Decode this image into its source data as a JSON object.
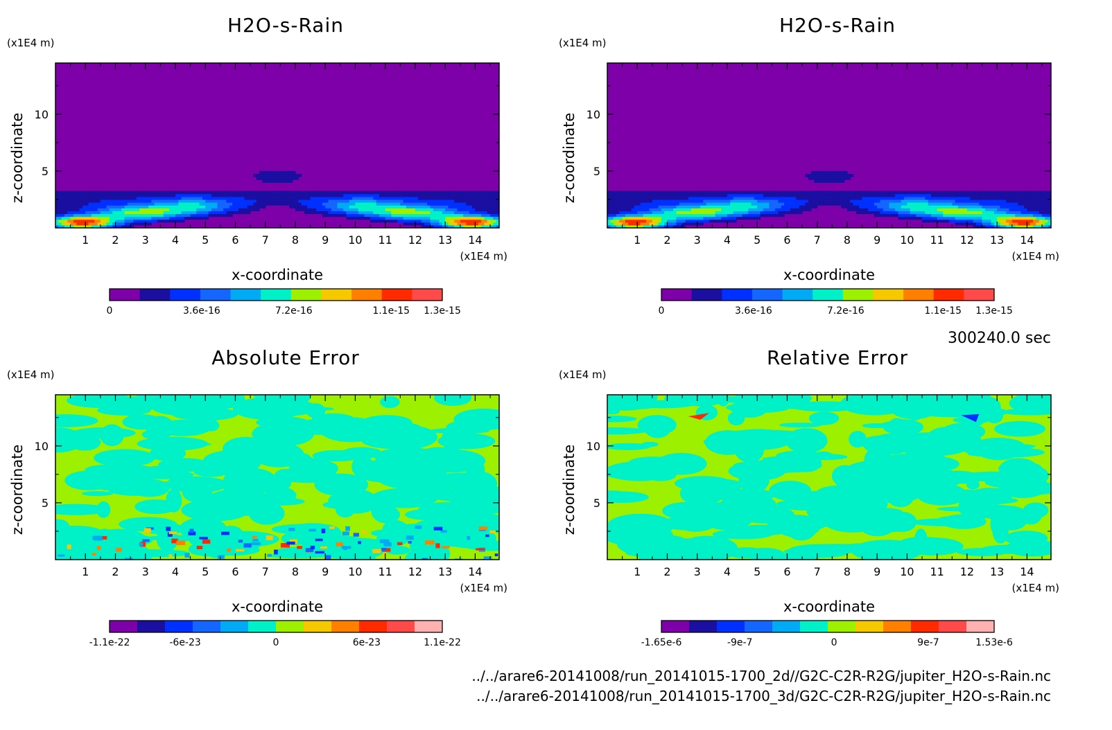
{
  "chart_data": [
    {
      "type": "heatmap",
      "title": "H2O-s-Rain",
      "xlabel": "x-coordinate",
      "ylabel": "z-coordinate",
      "x_unit": "(x1E4 m)",
      "y_unit": "(x1E4 m)",
      "xlim": [
        0,
        14.8
      ],
      "ylim": [
        0,
        14.5
      ],
      "x_ticks": [
        "1",
        "2",
        "3",
        "4",
        "5",
        "6",
        "7",
        "8",
        "9",
        "10",
        "11",
        "12",
        "13",
        "14"
      ],
      "y_ticks": [
        "5",
        "10"
      ],
      "colorbar_ticks": [
        "0",
        "3.6e-16",
        "7.2e-16",
        "1.1e-15",
        "1.3e-15"
      ],
      "colorbar_range": [
        0,
        1.3e-15
      ],
      "colors": [
        "#7d00a8",
        "#1a0fa0",
        "#0030ff",
        "#1566ff",
        "#00aaf5",
        "#00f0c8",
        "#9cf000",
        "#f5c800",
        "#ff8000",
        "#ff2a00",
        "#ff4a4a"
      ],
      "field": "rain_mixing_ratio"
    },
    {
      "type": "heatmap",
      "title": "H2O-s-Rain",
      "xlabel": "x-coordinate",
      "ylabel": "z-coordinate",
      "x_unit": "(x1E4 m)",
      "y_unit": "(x1E4 m)",
      "xlim": [
        0,
        14.8
      ],
      "ylim": [
        0,
        14.5
      ],
      "x_ticks": [
        "1",
        "2",
        "3",
        "4",
        "5",
        "6",
        "7",
        "8",
        "9",
        "10",
        "11",
        "12",
        "13",
        "14"
      ],
      "y_ticks": [
        "5",
        "10"
      ],
      "colorbar_ticks": [
        "0",
        "3.6e-16",
        "7.2e-16",
        "1.1e-15",
        "1.3e-15"
      ],
      "colorbar_range": [
        0,
        1.3e-15
      ],
      "colors": [
        "#7d00a8",
        "#1a0fa0",
        "#0030ff",
        "#1566ff",
        "#00aaf5",
        "#00f0c8",
        "#9cf000",
        "#f5c800",
        "#ff8000",
        "#ff2a00",
        "#ff4a4a"
      ],
      "field": "rain_mixing_ratio"
    },
    {
      "type": "heatmap",
      "title": "Absolute Error",
      "xlabel": "x-coordinate",
      "ylabel": "z-coordinate",
      "x_unit": "(x1E4 m)",
      "y_unit": "(x1E4 m)",
      "xlim": [
        0,
        14.8
      ],
      "ylim": [
        0,
        14.5
      ],
      "x_ticks": [
        "1",
        "2",
        "3",
        "4",
        "5",
        "6",
        "7",
        "8",
        "9",
        "10",
        "11",
        "12",
        "13",
        "14"
      ],
      "y_ticks": [
        "5",
        "10"
      ],
      "colorbar_ticks": [
        "-1.1e-22",
        "-6e-23",
        "0",
        "6e-23",
        "1.1e-22"
      ],
      "colorbar_range": [
        -1.1e-22,
        1.1e-22
      ],
      "colors": [
        "#7d00a8",
        "#1a0fa0",
        "#0030ff",
        "#1566ff",
        "#00aaf5",
        "#00f0c8",
        "#9cf000",
        "#f5c800",
        "#ff8000",
        "#ff2a00",
        "#ff4a4a",
        "#ffb0b0"
      ],
      "field": "error_noise"
    },
    {
      "type": "heatmap",
      "title": "Relative Error",
      "xlabel": "x-coordinate",
      "ylabel": "z-coordinate",
      "x_unit": "(x1E4 m)",
      "y_unit": "(x1E4 m)",
      "xlim": [
        0,
        14.8
      ],
      "ylim": [
        0,
        14.5
      ],
      "x_ticks": [
        "1",
        "2",
        "3",
        "4",
        "5",
        "6",
        "7",
        "8",
        "9",
        "10",
        "11",
        "12",
        "13",
        "14"
      ],
      "y_ticks": [
        "5",
        "10"
      ],
      "colorbar_ticks": [
        "-1.65e-6",
        "-9e-7",
        "0",
        "9e-7",
        "1.53e-6"
      ],
      "colorbar_range": [
        -1.65e-06,
        1.53e-06
      ],
      "colors": [
        "#7d00a8",
        "#1a0fa0",
        "#0030ff",
        "#1566ff",
        "#00aaf5",
        "#00f0c8",
        "#9cf000",
        "#f5c800",
        "#ff8000",
        "#ff2a00",
        "#ff4a4a",
        "#ffb0b0"
      ],
      "field": "error_noise_relative"
    }
  ],
  "time_stamp": "300240.0 sec",
  "footer_lines": [
    "../../arare6-20141008/run_20141015-1700_2d//G2C-C2R-R2G/jupiter_H2O-s-Rain.nc",
    "../../arare6-20141008/run_20141015-1700_3d/G2C-C2R-R2G/jupiter_H2O-s-Rain.nc"
  ]
}
